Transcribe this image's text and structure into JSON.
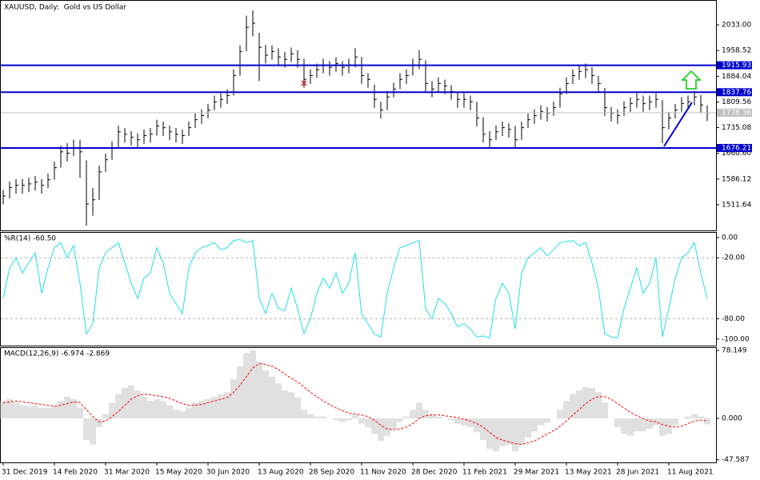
{
  "chart_data": [
    {
      "type": "ohlc",
      "title": "XAUUSD, Daily:  Gold vs US Dollar",
      "color": "#000000",
      "categories": [
        "31 Dec 2019",
        null,
        null,
        null,
        null,
        null,
        null,
        null,
        "14 Feb 2020",
        null,
        null,
        null,
        null,
        null,
        null,
        null,
        "31 Mar 2020",
        null,
        null,
        null,
        null,
        null,
        null,
        null,
        "15 May 2020",
        null,
        null,
        null,
        null,
        null,
        null,
        null,
        "30 Jun 2020",
        null,
        null,
        null,
        null,
        null,
        null,
        null,
        "13 Aug 2020",
        null,
        null,
        null,
        null,
        null,
        null,
        null,
        "28 Sep 2020",
        null,
        null,
        null,
        null,
        null,
        null,
        null,
        "11 Nov 2020",
        null,
        null,
        null,
        null,
        null,
        null,
        null,
        "28 Dec 2020",
        null,
        null,
        null,
        null,
        null,
        null,
        null,
        "11 Feb 2021",
        null,
        null,
        null,
        null,
        null,
        null,
        null,
        "29 Mar 2021",
        null,
        null,
        null,
        null,
        null,
        null,
        null,
        "13 May 2021",
        null,
        null,
        null,
        null,
        null,
        null,
        null,
        "28 Jun 2021",
        null,
        null,
        null,
        null,
        null,
        null,
        null,
        "11 Aug 2021",
        null,
        null,
        null,
        null,
        null,
        null
      ],
      "high": [
        1555,
        1579,
        1586,
        1586,
        1590,
        1595,
        1586,
        1602,
        1637,
        1683,
        1690,
        1700,
        1700,
        1640,
        1560,
        1625,
        1660,
        1695,
        1741,
        1734,
        1725,
        1718,
        1730,
        1734,
        1758,
        1753,
        1741,
        1734,
        1730,
        1753,
        1776,
        1788,
        1804,
        1828,
        1835,
        1846,
        1904,
        1974,
        2060,
        2075,
        2010,
        1975,
        1974,
        1965,
        1955,
        1967,
        1960,
        1935,
        1904,
        1921,
        1935,
        1928,
        1939,
        1928,
        1935,
        1965,
        1940,
        1893,
        1860,
        1810,
        1842,
        1865,
        1893,
        1904,
        1935,
        1960,
        1930,
        1870,
        1881,
        1874,
        1858,
        1840,
        1835,
        1828,
        1810,
        1765,
        1725,
        1741,
        1753,
        1748,
        1740,
        1753,
        1776,
        1788,
        1800,
        1795,
        1811,
        1851,
        1881,
        1904,
        1916,
        1921,
        1910,
        1885,
        1850,
        1795,
        1788,
        1811,
        1823,
        1835,
        1828,
        1828,
        1835,
        1815,
        1781,
        1804,
        1823,
        1828,
        1842,
        1830,
        1800
      ],
      "low": [
        1513,
        1530,
        1544,
        1544,
        1548,
        1553,
        1544,
        1560,
        1584,
        1619,
        1637,
        1653,
        1590,
        1451,
        1480,
        1526,
        1607,
        1642,
        1677,
        1692,
        1683,
        1676,
        1688,
        1692,
        1712,
        1711,
        1699,
        1692,
        1688,
        1711,
        1734,
        1746,
        1762,
        1786,
        1793,
        1804,
        1828,
        1886,
        1956,
        2000,
        1870,
        1921,
        1932,
        1916,
        1909,
        1925,
        1909,
        1851,
        1862,
        1879,
        1893,
        1886,
        1897,
        1886,
        1893,
        1910,
        1862,
        1851,
        1793,
        1762,
        1786,
        1823,
        1847,
        1862,
        1886,
        1905,
        1839,
        1823,
        1839,
        1832,
        1816,
        1793,
        1793,
        1786,
        1739,
        1692,
        1676,
        1699,
        1711,
        1706,
        1676,
        1700,
        1734,
        1746,
        1758,
        1753,
        1769,
        1793,
        1833,
        1862,
        1874,
        1879,
        1862,
        1839,
        1769,
        1753,
        1746,
        1769,
        1781,
        1793,
        1781,
        1786,
        1793,
        1690,
        1730,
        1762,
        1781,
        1786,
        1800,
        1777,
        1754
      ],
      "close": [
        1537,
        1561,
        1568,
        1568,
        1572,
        1577,
        1568,
        1584,
        1619,
        1665,
        1661,
        1677,
        1665,
        1514,
        1526,
        1607,
        1642,
        1677,
        1723,
        1716,
        1707,
        1700,
        1712,
        1716,
        1740,
        1735,
        1723,
        1716,
        1712,
        1735,
        1758,
        1770,
        1786,
        1810,
        1817,
        1828,
        1886,
        1956,
        2026,
        2038,
        1968,
        1945,
        1956,
        1940,
        1933,
        1949,
        1933,
        1875,
        1886,
        1903,
        1917,
        1910,
        1921,
        1910,
        1917,
        1940,
        1886,
        1875,
        1817,
        1786,
        1824,
        1847,
        1875,
        1886,
        1917,
        1933,
        1863,
        1847,
        1863,
        1856,
        1840,
        1817,
        1817,
        1810,
        1763,
        1716,
        1700,
        1723,
        1735,
        1730,
        1700,
        1735,
        1758,
        1770,
        1782,
        1777,
        1793,
        1833,
        1863,
        1886,
        1898,
        1903,
        1886,
        1863,
        1793,
        1777,
        1770,
        1793,
        1805,
        1817,
        1805,
        1810,
        1817,
        1735,
        1763,
        1786,
        1805,
        1810,
        1824,
        1801,
        1778
      ],
      "ylim": [
        1437.2,
        2102.8
      ],
      "yticks": [
        {
          "value": 2033,
          "label": "2033.00"
        },
        {
          "value": 1958.52,
          "label": "1958.52"
        },
        {
          "value": 1884.04,
          "label": "1884.04"
        },
        {
          "value": 1809.56,
          "label": "1809.56"
        },
        {
          "value": 1735.08,
          "label": "1735.08"
        },
        {
          "value": 1660.6,
          "label": "1660.60"
        },
        {
          "value": 1586.12,
          "label": "1586.12"
        },
        {
          "value": 1511.64,
          "label": "1511.64"
        }
      ],
      "levels": [
        {
          "value": 1915.93,
          "label": "1915.93"
        },
        {
          "value": 1837.76,
          "label": "1837.76"
        },
        {
          "value": 1676.21,
          "label": "1676.21"
        }
      ],
      "level_color": "#0000cc",
      "last": {
        "value": 1778.36,
        "label": "1778.36"
      },
      "last_color": "#c0c0c0"
    },
    {
      "type": "line",
      "title": "%R(14) -60.50",
      "color": "#22dde8",
      "values": [
        -60,
        -30,
        -20,
        -35,
        -25,
        -15,
        -55,
        -30,
        -10,
        -5,
        -20,
        -8,
        -45,
        -95,
        -85,
        -30,
        -15,
        -10,
        -5,
        -25,
        -45,
        -60,
        -40,
        -35,
        -10,
        -25,
        -55,
        -65,
        -75,
        -30,
        -15,
        -10,
        -8,
        -5,
        -12,
        -10,
        -3,
        -2,
        -5,
        -3,
        -60,
        -75,
        -55,
        -70,
        -72,
        -50,
        -70,
        -95,
        -80,
        -55,
        -40,
        -50,
        -35,
        -55,
        -45,
        -15,
        -75,
        -85,
        -95,
        -98,
        -55,
        -30,
        -10,
        -8,
        -5,
        -3,
        -70,
        -80,
        -60,
        -65,
        -75,
        -88,
        -85,
        -90,
        -98,
        -97,
        -99,
        -60,
        -45,
        -55,
        -90,
        -35,
        -20,
        -15,
        -10,
        -18,
        -12,
        -5,
        -4,
        -3,
        -8,
        -5,
        -25,
        -50,
        -95,
        -98,
        -99,
        -70,
        -50,
        -30,
        -55,
        -45,
        -20,
        -98,
        -70,
        -40,
        -20,
        -15,
        -5,
        -35,
        -60.5
      ],
      "ylim": [
        -106.5,
        4.6
      ],
      "yticks": [
        {
          "value": 0,
          "label": "0.00"
        },
        {
          "value": -20,
          "label": "-20.00"
        },
        {
          "value": -80,
          "label": "-80.00"
        },
        {
          "value": -100,
          "label": "-100.00"
        }
      ],
      "levels": [
        -20,
        -80
      ]
    },
    {
      "type": "macd",
      "title": "MACD(12,26,9) -6.974 -2.869",
      "series": [
        {
          "type": "bar",
          "color": "#c0c0c0",
          "values": [
            20,
            22,
            18,
            15,
            14,
            15,
            12,
            12,
            14,
            20,
            25,
            22,
            12,
            -25,
            -30,
            -10,
            5,
            18,
            28,
            35,
            38,
            32,
            25,
            20,
            22,
            20,
            15,
            10,
            8,
            12,
            18,
            20,
            22,
            25,
            28,
            30,
            45,
            60,
            75,
            78,
            65,
            55,
            48,
            40,
            32,
            30,
            24,
            10,
            5,
            2,
            2,
            0,
            -2,
            -4,
            -2,
            4,
            -6,
            -10,
            -18,
            -26,
            -20,
            -12,
            -4,
            2,
            10,
            18,
            10,
            4,
            2,
            0,
            -2,
            -6,
            -8,
            -10,
            -16,
            -25,
            -35,
            -38,
            -32,
            -30,
            -38,
            -30,
            -22,
            -15,
            -8,
            -5,
            0,
            10,
            20,
            28,
            32,
            36,
            35,
            30,
            18,
            0,
            -10,
            -18,
            -20,
            -15,
            -15,
            -12,
            -8,
            -20,
            -18,
            -8,
            0,
            2,
            5,
            2,
            -6.974
          ]
        },
        {
          "type": "line",
          "color": "#ff0000",
          "values": [
            18,
            19,
            20,
            19,
            18,
            17,
            16,
            15,
            14,
            15,
            17,
            19,
            18,
            10,
            2,
            -4,
            -3,
            2,
            8,
            15,
            22,
            26,
            28,
            27,
            26,
            25,
            23,
            20,
            17,
            15,
            15,
            16,
            18,
            20,
            22,
            24,
            30,
            38,
            48,
            58,
            63,
            62,
            60,
            56,
            51,
            46,
            42,
            36,
            30,
            25,
            20,
            16,
            12,
            9,
            6,
            5,
            4,
            2,
            -2,
            -8,
            -12,
            -13,
            -12,
            -10,
            -6,
            0,
            3,
            4,
            4,
            3,
            2,
            1,
            -1,
            -3,
            -6,
            -10,
            -16,
            -22,
            -25,
            -27,
            -29,
            -30,
            -28,
            -26,
            -22,
            -18,
            -14,
            -9,
            -3,
            4,
            10,
            17,
            22,
            25,
            25,
            22,
            17,
            12,
            7,
            3,
            0,
            -3,
            -4,
            -7,
            -9,
            -10,
            -9,
            -6,
            -3,
            -2,
            -2.869
          ]
        }
      ],
      "ylim": [
        -50.6,
        80.9
      ],
      "yticks": [
        78.149,
        {
          "value": 0,
          "label": "0.000"
        },
        -47.587
      ]
    }
  ]
}
